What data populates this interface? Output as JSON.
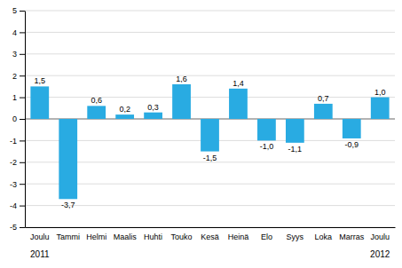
{
  "chart_data": {
    "type": "bar",
    "categories": [
      "Joulu",
      "Tammi",
      "Helmi",
      "Maalis",
      "Huhti",
      "Touko",
      "Kesä",
      "Heinä",
      "Elo",
      "Syys",
      "Loka",
      "Marras",
      "Joulu"
    ],
    "values": [
      1.5,
      -3.7,
      0.6,
      0.2,
      0.3,
      1.6,
      -1.5,
      1.4,
      -1.0,
      -1.1,
      0.7,
      -0.9,
      1.0
    ],
    "value_labels": [
      "1,5",
      "-3,7",
      "0,6",
      "0,2",
      "0,3",
      "1,6",
      "-1,5",
      "1,4",
      "-1,0",
      "-1,1",
      "0,7",
      "-0,9",
      "1,0"
    ],
    "data_labels": true,
    "color": "#29abe2",
    "ylim": [
      -5,
      5
    ],
    "yticks": [
      -5,
      -4,
      -3,
      -2,
      -1,
      0,
      1,
      2,
      3,
      4,
      5
    ],
    "grid": true,
    "annotations": [
      "2011",
      "2012"
    ]
  }
}
